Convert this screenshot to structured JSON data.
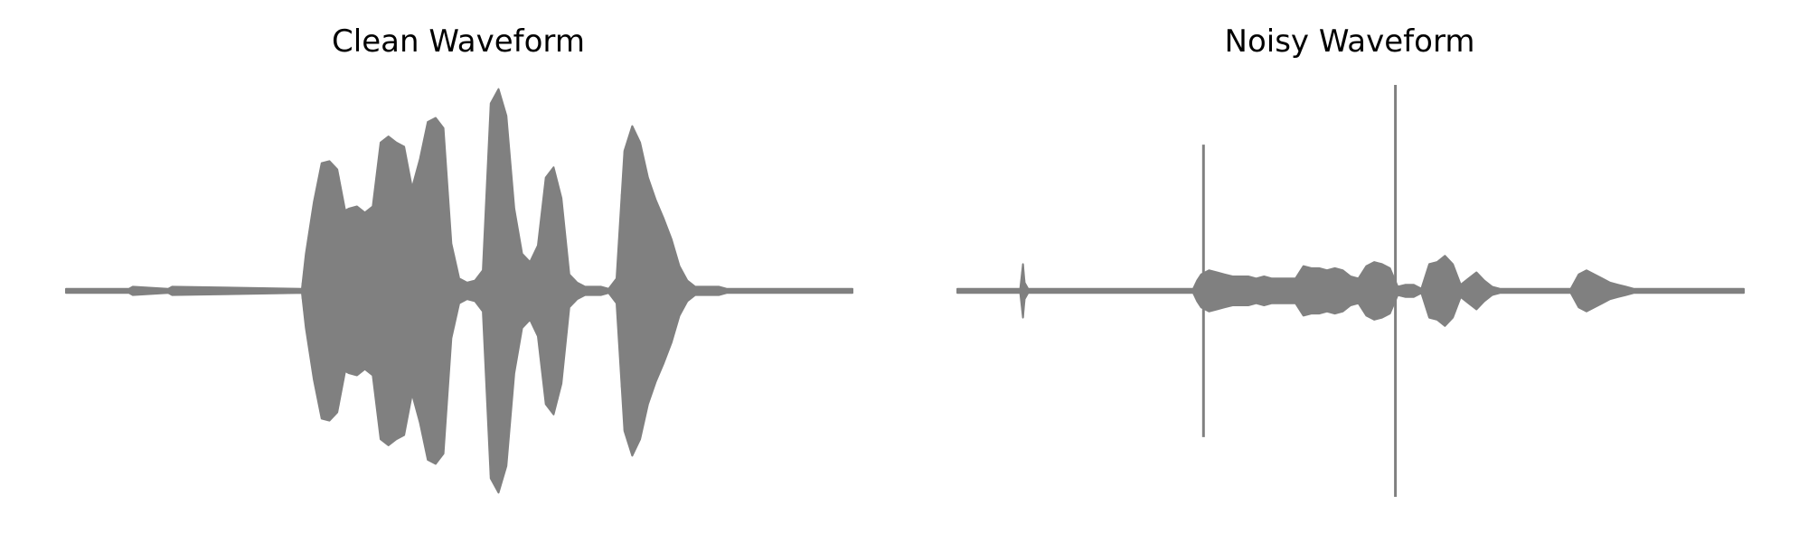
{
  "chart_data": [
    {
      "type": "area",
      "title": "Clean Waveform",
      "xlabel": "",
      "ylabel": "",
      "axes_visible": false,
      "grid": false,
      "color": "#808080",
      "ylim": [
        -1.0,
        1.0
      ],
      "xlim": [
        0.0,
        1.0
      ],
      "envelope": {
        "x": [
          0.0,
          0.08,
          0.085,
          0.13,
          0.135,
          0.3,
          0.305,
          0.315,
          0.325,
          0.335,
          0.345,
          0.355,
          0.36,
          0.37,
          0.38,
          0.39,
          0.4,
          0.41,
          0.42,
          0.43,
          0.44,
          0.45,
          0.46,
          0.47,
          0.48,
          0.49,
          0.5,
          0.51,
          0.52,
          0.53,
          0.54,
          0.55,
          0.56,
          0.57,
          0.58,
          0.59,
          0.6,
          0.61,
          0.62,
          0.63,
          0.64,
          0.65,
          0.66,
          0.67,
          0.68,
          0.69,
          0.7,
          0.71,
          0.72,
          0.73,
          0.74,
          0.75,
          0.76,
          0.77,
          0.78,
          0.79,
          0.8,
          0.81,
          0.82,
          0.83,
          0.84,
          0.85,
          0.86,
          0.87,
          0.88,
          0.9,
          1.0
        ],
        "amplitude": [
          0.01,
          0.01,
          0.02,
          0.01,
          0.02,
          0.01,
          0.18,
          0.43,
          0.62,
          0.63,
          0.59,
          0.39,
          0.4,
          0.41,
          0.38,
          0.41,
          0.72,
          0.75,
          0.72,
          0.7,
          0.5,
          0.64,
          0.82,
          0.84,
          0.79,
          0.23,
          0.06,
          0.04,
          0.05,
          0.1,
          0.91,
          0.98,
          0.85,
          0.4,
          0.18,
          0.14,
          0.22,
          0.55,
          0.6,
          0.45,
          0.08,
          0.04,
          0.02,
          0.02,
          0.02,
          0.01,
          0.06,
          0.68,
          0.8,
          0.72,
          0.55,
          0.44,
          0.35,
          0.25,
          0.12,
          0.05,
          0.02,
          0.02,
          0.02,
          0.02,
          0.01,
          0.01,
          0.01,
          0.01,
          0.01,
          0.01,
          0.01
        ]
      }
    },
    {
      "type": "area",
      "title": "Noisy Waveform",
      "xlabel": "",
      "ylabel": "",
      "axes_visible": false,
      "grid": false,
      "color": "#808080",
      "ylim": [
        -1.0,
        1.0
      ],
      "xlim": [
        0.0,
        1.0
      ],
      "envelope": {
        "x": [
          0.0,
          0.08,
          0.0835,
          0.0855,
          0.09,
          0.22,
          0.3,
          0.305,
          0.31,
          0.32,
          0.33,
          0.34,
          0.35,
          0.36,
          0.37,
          0.38,
          0.39,
          0.4,
          0.41,
          0.42,
          0.43,
          0.44,
          0.45,
          0.46,
          0.47,
          0.48,
          0.49,
          0.5,
          0.51,
          0.52,
          0.53,
          0.54,
          0.55,
          0.56,
          0.57,
          0.58,
          0.59,
          0.6,
          0.61,
          0.62,
          0.63,
          0.64,
          0.65,
          0.66,
          0.67,
          0.68,
          0.69,
          0.7,
          0.71,
          0.72,
          0.73,
          0.74,
          0.75,
          0.76,
          0.77,
          0.78,
          0.79,
          0.8,
          0.81,
          0.82,
          0.83,
          0.84,
          0.85,
          0.86,
          0.87,
          0.88,
          0.9,
          1.0
        ],
        "amplitude": [
          0.01,
          0.01,
          0.13,
          0.04,
          0.01,
          0.01,
          0.01,
          0.05,
          0.08,
          0.1,
          0.09,
          0.08,
          0.07,
          0.07,
          0.07,
          0.06,
          0.07,
          0.06,
          0.06,
          0.06,
          0.06,
          0.12,
          0.11,
          0.11,
          0.1,
          0.11,
          0.1,
          0.07,
          0.06,
          0.12,
          0.14,
          0.13,
          0.11,
          0.02,
          0.03,
          0.03,
          0.01,
          0.13,
          0.14,
          0.17,
          0.13,
          0.03,
          0.06,
          0.09,
          0.05,
          0.02,
          0.01,
          0.01,
          0.01,
          0.01,
          0.01,
          0.01,
          0.01,
          0.01,
          0.01,
          0.01,
          0.08,
          0.1,
          0.08,
          0.06,
          0.04,
          0.03,
          0.02,
          0.01,
          0.01,
          0.01,
          0.01,
          0.01
        ]
      },
      "spikes": [
        {
          "x": 0.313,
          "y": [
            -0.71,
            0.71
          ]
        },
        {
          "x": 0.557,
          "y": [
            -1.0,
            1.0
          ]
        }
      ]
    }
  ]
}
